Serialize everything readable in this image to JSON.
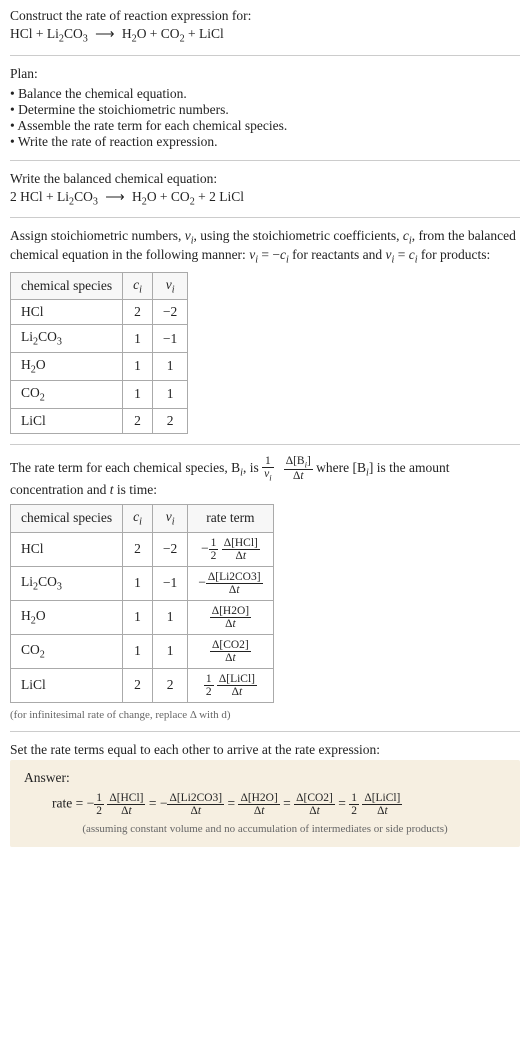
{
  "colors": {
    "bg": "#ffffff",
    "text": "#222222",
    "rule": "#cccccc",
    "border": "#aaaaaa",
    "thbg": "#f7f7f7",
    "answerbg": "#f6efe1",
    "note": "#666666"
  },
  "typography": {
    "body_pt": 13.5,
    "note_pt": 11,
    "family": "Georgia"
  },
  "prompt": {
    "line1": "Construct the rate of reaction expression for:",
    "eq_left": "HCl + Li",
    "eq_left_sub": "2",
    "eq_left2": "CO",
    "eq_left2_sub": "3",
    "arrow": "⟶",
    "eq_right_a": "H",
    "eq_right_a_sub": "2",
    "eq_right_a2": "O + CO",
    "eq_right_a2_sub": "2",
    "eq_right_a3": " + LiCl"
  },
  "plan": {
    "title": "Plan:",
    "items": [
      "Balance the chemical equation.",
      "Determine the stoichiometric numbers.",
      "Assemble the rate term for each chemical species.",
      "Write the rate of reaction expression."
    ]
  },
  "balanced": {
    "intro": "Write the balanced chemical equation:",
    "l1": "2 HCl + Li",
    "l1s": "2",
    "l2": "CO",
    "l2s": "3",
    "arrow": "⟶",
    "r1": "H",
    "r1s": "2",
    "r2": "O + CO",
    "r2s": "2",
    "r3": " + 2 LiCl"
  },
  "assign": {
    "text_a": "Assign stoichiometric numbers, ",
    "nu": "ν",
    "i": "i",
    "text_b": ", using the stoichiometric coefficients, ",
    "c": "c",
    "text_c": ", from the balanced chemical equation in the following manner: ",
    "rel1a": "ν",
    "rel1b": " = −",
    "rel1c": "c",
    "text_d": " for reactants and ",
    "rel2a": "ν",
    "rel2b": " = ",
    "rel2c": "c",
    "text_e": " for products:"
  },
  "table1": {
    "headers": {
      "species": "chemical species",
      "c": "c",
      "nu": "ν",
      "i": "i"
    },
    "rows": [
      {
        "sp_a": "HCl",
        "sp_sub": "",
        "sp_b": "",
        "sp_sub2": "",
        "c": "2",
        "nu": "−2"
      },
      {
        "sp_a": "Li",
        "sp_sub": "2",
        "sp_b": "CO",
        "sp_sub2": "3",
        "c": "1",
        "nu": "−1"
      },
      {
        "sp_a": "H",
        "sp_sub": "2",
        "sp_b": "O",
        "sp_sub2": "",
        "c": "1",
        "nu": "1"
      },
      {
        "sp_a": "CO",
        "sp_sub": "2",
        "sp_b": "",
        "sp_sub2": "",
        "c": "1",
        "nu": "1"
      },
      {
        "sp_a": "LiCl",
        "sp_sub": "",
        "sp_b": "",
        "sp_sub2": "",
        "c": "2",
        "nu": "2"
      }
    ]
  },
  "rateterm": {
    "a": "The rate term for each chemical species, B",
    "b": ", is ",
    "one": "1",
    "nu": "ν",
    "i": "i",
    "dnum": "Δ[B",
    "dnum2": "]",
    "dden": "Δt",
    "c": " where [B",
    "d": "] is the amount concentration and ",
    "t": "t",
    "e": " is time:"
  },
  "table2": {
    "headers": {
      "species": "chemical species",
      "c": "c",
      "nu": "ν",
      "i": "i",
      "rate": "rate term"
    },
    "rows": [
      {
        "sp_a": "HCl",
        "sp_sub": "",
        "sp_b": "",
        "sp_sub2": "",
        "c": "2",
        "nu": "−2",
        "pre": "−",
        "fnum": "1",
        "fden": "2",
        "dnum": "Δ[HCl]",
        "dden": "Δt"
      },
      {
        "sp_a": "Li",
        "sp_sub": "2",
        "sp_b": "CO",
        "sp_sub2": "3",
        "c": "1",
        "nu": "−1",
        "pre": "−",
        "fnum": "",
        "fden": "",
        "dnum": "Δ[Li2CO3]",
        "dden": "Δt"
      },
      {
        "sp_a": "H",
        "sp_sub": "2",
        "sp_b": "O",
        "sp_sub2": "",
        "c": "1",
        "nu": "1",
        "pre": "",
        "fnum": "",
        "fden": "",
        "dnum": "Δ[H2O]",
        "dden": "Δt"
      },
      {
        "sp_a": "CO",
        "sp_sub": "2",
        "sp_b": "",
        "sp_sub2": "",
        "c": "1",
        "nu": "1",
        "pre": "",
        "fnum": "",
        "fden": "",
        "dnum": "Δ[CO2]",
        "dden": "Δt"
      },
      {
        "sp_a": "LiCl",
        "sp_sub": "",
        "sp_b": "",
        "sp_sub2": "",
        "c": "2",
        "nu": "2",
        "pre": "",
        "fnum": "1",
        "fden": "2",
        "dnum": "Δ[LiCl]",
        "dden": "Δt"
      }
    ],
    "note": "(for infinitesimal rate of change, replace Δ with d)"
  },
  "final_intro": "Set the rate terms equal to each other to arrive at the rate expression:",
  "answer": {
    "label": "Answer:",
    "lead": "rate = ",
    "t1_pre": "−",
    "t1n": "1",
    "t1d": "2",
    "t1Dn": "Δ[HCl]",
    "t1Dd": "Δt",
    "eq": " = ",
    "t2_pre": "−",
    "t2Dn": "Δ[Li2CO3]",
    "t2Dd": "Δt",
    "t3Dn": "Δ[H2O]",
    "t3Dd": "Δt",
    "t4Dn": "Δ[CO2]",
    "t4Dd": "Δt",
    "t5n": "1",
    "t5d": "2",
    "t5Dn": "Δ[LiCl]",
    "t5Dd": "Δt",
    "assume": "(assuming constant volume and no accumulation of intermediates or side products)"
  }
}
